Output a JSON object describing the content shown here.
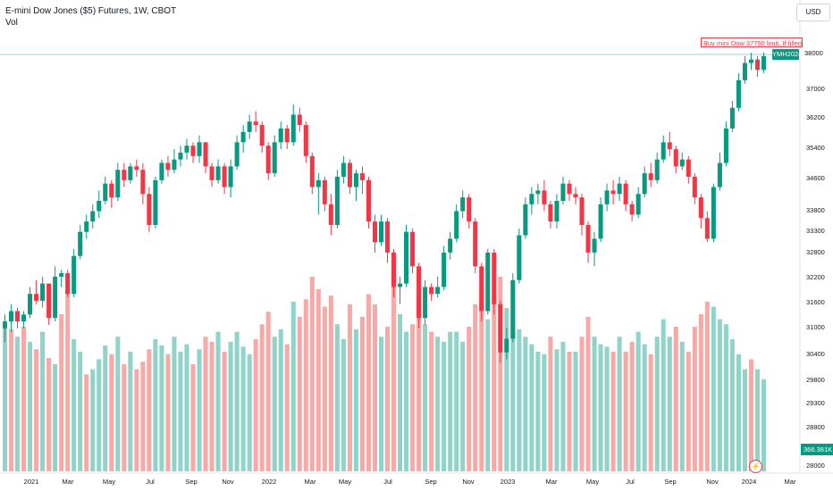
{
  "header": {
    "title": "E-mini Dow Jones ($5) Futures, 1W, CBOT",
    "vol_label": "Vol",
    "currency_button": "USD"
  },
  "order_line": {
    "label": "Buy mini Dow 37750 limit. If filled, sto",
    "price": 38000,
    "color": "#f23645"
  },
  "symbol_tag": "YMH2024",
  "last_price_label": "38000",
  "volume_tag": "366.381K",
  "lightning_icon": "lightning-icon",
  "colors": {
    "up": "#089981",
    "down": "#f23645",
    "vol_up": "#8fd3c9",
    "vol_down": "#f7a9a7",
    "axis_text": "#131722",
    "order_line": "#9ed6cc"
  },
  "chart_data": {
    "type": "candlestick",
    "title": "E-mini Dow Jones ($5) Futures, 1W, CBOT",
    "y_axis_ticks": [
      38000,
      37000,
      36200,
      35400,
      34600,
      33800,
      33300,
      32800,
      32200,
      31600,
      31000,
      30400,
      29800,
      29300,
      28800,
      28400,
      28000
    ],
    "x_axis_ticks": [
      "2021",
      "Mar",
      "May",
      "Jul",
      "Sep",
      "Nov",
      "2022",
      "Mar",
      "May",
      "Jul",
      "Sep",
      "Nov",
      "2023",
      "Mar",
      "May",
      "Jul",
      "Sep",
      "Nov",
      "2024",
      "Mar"
    ],
    "candles": [
      [
        30000,
        30400,
        29600,
        30200
      ],
      [
        30200,
        30700,
        29900,
        30500
      ],
      [
        30500,
        30600,
        30000,
        30200
      ],
      [
        30200,
        30500,
        30000,
        30400
      ],
      [
        30400,
        31200,
        30300,
        31000
      ],
      [
        31000,
        31400,
        30700,
        30800
      ],
      [
        30800,
        31500,
        30600,
        31300
      ],
      [
        31300,
        31300,
        30100,
        30300
      ],
      [
        30300,
        31800,
        30200,
        31500
      ],
      [
        31500,
        31700,
        31200,
        31600
      ],
      [
        31600,
        31700,
        30900,
        31000
      ],
      [
        31000,
        32300,
        30900,
        32100
      ],
      [
        32100,
        33000,
        32000,
        32800
      ],
      [
        32800,
        33300,
        32600,
        33100
      ],
      [
        33100,
        33600,
        32900,
        33400
      ],
      [
        33400,
        34000,
        33200,
        33700
      ],
      [
        33700,
        34400,
        33600,
        34200
      ],
      [
        34200,
        34300,
        33500,
        33800
      ],
      [
        33800,
        34800,
        33700,
        34600
      ],
      [
        34600,
        34800,
        34100,
        34300
      ],
      [
        34300,
        34800,
        34200,
        34700
      ],
      [
        34700,
        34900,
        34400,
        34600
      ],
      [
        34600,
        34800,
        33600,
        33900
      ],
      [
        33900,
        34100,
        32800,
        33000
      ],
      [
        33000,
        34400,
        32900,
        34300
      ],
      [
        34300,
        34900,
        34200,
        34800
      ],
      [
        34800,
        35000,
        34400,
        34600
      ],
      [
        34600,
        35200,
        34500,
        34900
      ],
      [
        34900,
        35300,
        34700,
        35100
      ],
      [
        35100,
        35500,
        34900,
        35300
      ],
      [
        35300,
        35400,
        34800,
        35000
      ],
      [
        35000,
        35600,
        34800,
        35400
      ],
      [
        35400,
        35400,
        34500,
        34700
      ],
      [
        34700,
        34800,
        34100,
        34300
      ],
      [
        34300,
        34900,
        34200,
        34700
      ],
      [
        34700,
        34800,
        33900,
        34100
      ],
      [
        34100,
        34900,
        33800,
        34700
      ],
      [
        34700,
        35600,
        34600,
        35400
      ],
      [
        35400,
        35900,
        35100,
        35700
      ],
      [
        35700,
        36200,
        35500,
        36000
      ],
      [
        36000,
        36300,
        35700,
        35900
      ],
      [
        35900,
        36000,
        35100,
        35300
      ],
      [
        35300,
        35400,
        34300,
        34500
      ],
      [
        34500,
        35600,
        34400,
        35400
      ],
      [
        35400,
        36000,
        35200,
        35800
      ],
      [
        35800,
        35900,
        35200,
        35400
      ],
      [
        35400,
        36500,
        35300,
        36200
      ],
      [
        36200,
        36400,
        35700,
        35900
      ],
      [
        35900,
        36000,
        34800,
        35000
      ],
      [
        35000,
        35100,
        33900,
        34100
      ],
      [
        34100,
        34500,
        33300,
        34300
      ],
      [
        34300,
        34400,
        33400,
        33600
      ],
      [
        33600,
        33900,
        32700,
        33000
      ],
      [
        33000,
        34600,
        32900,
        34400
      ],
      [
        34400,
        35000,
        34200,
        34800
      ],
      [
        34800,
        34900,
        33900,
        34100
      ],
      [
        34100,
        34600,
        33700,
        34500
      ],
      [
        34500,
        34700,
        33900,
        34300
      ],
      [
        34300,
        34400,
        32900,
        33100
      ],
      [
        33100,
        33300,
        32200,
        32500
      ],
      [
        32500,
        33300,
        32400,
        33100
      ],
      [
        33100,
        33200,
        31900,
        32200
      ],
      [
        32200,
        32300,
        30900,
        31200
      ],
      [
        31200,
        31500,
        30700,
        31300
      ],
      [
        31300,
        33000,
        31200,
        32800
      ],
      [
        32800,
        32900,
        31600,
        31800
      ],
      [
        31800,
        31900,
        30000,
        30300
      ],
      [
        30300,
        31400,
        30100,
        31200
      ],
      [
        31200,
        31300,
        30800,
        31000
      ],
      [
        31000,
        31500,
        30900,
        31200
      ],
      [
        31200,
        32400,
        31100,
        32200
      ],
      [
        32200,
        32800,
        32000,
        32600
      ],
      [
        32600,
        33600,
        32500,
        33400
      ],
      [
        33400,
        34000,
        33200,
        33800
      ],
      [
        33800,
        33900,
        32900,
        33100
      ],
      [
        33100,
        33200,
        31600,
        31800
      ],
      [
        31800,
        31900,
        30200,
        30500
      ],
      [
        30500,
        32300,
        30400,
        32200
      ],
      [
        32200,
        32300,
        30400,
        30700
      ],
      [
        30700,
        30800,
        29000,
        29300
      ],
      [
        29300,
        30000,
        29100,
        29700
      ],
      [
        29700,
        31600,
        29600,
        31400
      ],
      [
        31400,
        32900,
        31300,
        32700
      ],
      [
        32700,
        33800,
        32600,
        33600
      ],
      [
        33600,
        34100,
        33300,
        33900
      ],
      [
        33900,
        34200,
        33600,
        34000
      ],
      [
        34000,
        34300,
        33400,
        33600
      ],
      [
        33600,
        33700,
        32900,
        33100
      ],
      [
        33100,
        33900,
        32900,
        33700
      ],
      [
        33700,
        34400,
        33600,
        34200
      ],
      [
        34200,
        34300,
        33700,
        33900
      ],
      [
        33900,
        34100,
        33600,
        33800
      ],
      [
        33800,
        33900,
        32700,
        33000
      ],
      [
        33000,
        33100,
        31900,
        32200
      ],
      [
        32200,
        32800,
        31800,
        32600
      ],
      [
        32600,
        33800,
        32500,
        33600
      ],
      [
        33600,
        34200,
        33400,
        34000
      ],
      [
        34000,
        34300,
        33600,
        33900
      ],
      [
        33900,
        34400,
        33700,
        34200
      ],
      [
        34200,
        34300,
        33400,
        33600
      ],
      [
        33600,
        33700,
        33100,
        33300
      ],
      [
        33300,
        34100,
        33200,
        33900
      ],
      [
        33900,
        34700,
        33800,
        34500
      ],
      [
        34500,
        34800,
        34100,
        34300
      ],
      [
        34300,
        35100,
        34200,
        34900
      ],
      [
        34900,
        35600,
        34800,
        35400
      ],
      [
        35400,
        35700,
        35000,
        35200
      ],
      [
        35200,
        35300,
        34500,
        34700
      ],
      [
        34700,
        35100,
        34600,
        34900
      ],
      [
        34900,
        35000,
        34200,
        34400
      ],
      [
        34400,
        34500,
        33600,
        33800
      ],
      [
        33800,
        33900,
        32900,
        33200
      ],
      [
        33200,
        33400,
        32500,
        32600
      ],
      [
        32600,
        34200,
        32500,
        34100
      ],
      [
        34100,
        35100,
        34000,
        34800
      ],
      [
        34800,
        36000,
        34700,
        35800
      ],
      [
        35800,
        36600,
        35700,
        36400
      ],
      [
        36400,
        37400,
        36300,
        37200
      ],
      [
        37200,
        37900,
        37100,
        37700
      ],
      [
        37700,
        38000,
        37500,
        37800
      ],
      [
        37800,
        37900,
        37300,
        37500
      ],
      [
        37500,
        38000,
        37400,
        37900
      ]
    ],
    "volume": [
      [
        272,
        "up"
      ],
      [
        268,
        "down"
      ],
      [
        262,
        "up"
      ],
      [
        270,
        "down"
      ],
      [
        258,
        "up"
      ],
      [
        252,
        "down"
      ],
      [
        266,
        "up"
      ],
      [
        245,
        "down"
      ],
      [
        240,
        "up"
      ],
      [
        280,
        "down"
      ],
      [
        300,
        "down"
      ],
      [
        260,
        "up"
      ],
      [
        250,
        "up"
      ],
      [
        232,
        "down"
      ],
      [
        236,
        "up"
      ],
      [
        244,
        "up"
      ],
      [
        255,
        "up"
      ],
      [
        248,
        "down"
      ],
      [
        262,
        "up"
      ],
      [
        240,
        "down"
      ],
      [
        250,
        "up"
      ],
      [
        236,
        "down"
      ],
      [
        242,
        "down"
      ],
      [
        252,
        "down"
      ],
      [
        260,
        "up"
      ],
      [
        255,
        "up"
      ],
      [
        248,
        "down"
      ],
      [
        262,
        "up"
      ],
      [
        250,
        "up"
      ],
      [
        256,
        "up"
      ],
      [
        240,
        "down"
      ],
      [
        252,
        "up"
      ],
      [
        262,
        "down"
      ],
      [
        258,
        "down"
      ],
      [
        266,
        "up"
      ],
      [
        250,
        "down"
      ],
      [
        258,
        "up"
      ],
      [
        266,
        "up"
      ],
      [
        254,
        "up"
      ],
      [
        248,
        "up"
      ],
      [
        260,
        "down"
      ],
      [
        272,
        "down"
      ],
      [
        282,
        "down"
      ],
      [
        262,
        "up"
      ],
      [
        268,
        "up"
      ],
      [
        256,
        "down"
      ],
      [
        290,
        "up"
      ],
      [
        278,
        "down"
      ],
      [
        292,
        "down"
      ],
      [
        310,
        "down"
      ],
      [
        300,
        "down"
      ],
      [
        286,
        "down"
      ],
      [
        295,
        "down"
      ],
      [
        272,
        "up"
      ],
      [
        260,
        "up"
      ],
      [
        288,
        "down"
      ],
      [
        268,
        "up"
      ],
      [
        278,
        "down"
      ],
      [
        296,
        "down"
      ],
      [
        288,
        "down"
      ],
      [
        262,
        "up"
      ],
      [
        270,
        "down"
      ],
      [
        310,
        "down"
      ],
      [
        280,
        "up"
      ],
      [
        266,
        "up"
      ],
      [
        272,
        "down"
      ],
      [
        296,
        "down"
      ],
      [
        272,
        "up"
      ],
      [
        266,
        "down"
      ],
      [
        262,
        "up"
      ],
      [
        258,
        "up"
      ],
      [
        266,
        "up"
      ],
      [
        266,
        "up"
      ],
      [
        258,
        "up"
      ],
      [
        270,
        "down"
      ],
      [
        288,
        "down"
      ],
      [
        300,
        "down"
      ],
      [
        276,
        "up"
      ],
      [
        295,
        "down"
      ],
      [
        310,
        "down"
      ],
      [
        285,
        "up"
      ],
      [
        280,
        "up"
      ],
      [
        268,
        "up"
      ],
      [
        262,
        "up"
      ],
      [
        256,
        "up"
      ],
      [
        250,
        "up"
      ],
      [
        248,
        "up"
      ],
      [
        262,
        "down"
      ],
      [
        252,
        "up"
      ],
      [
        258,
        "up"
      ],
      [
        250,
        "down"
      ],
      [
        250,
        "up"
      ],
      [
        262,
        "down"
      ],
      [
        278,
        "down"
      ],
      [
        262,
        "up"
      ],
      [
        256,
        "up"
      ],
      [
        254,
        "up"
      ],
      [
        250,
        "down"
      ],
      [
        262,
        "up"
      ],
      [
        250,
        "down"
      ],
      [
        258,
        "down"
      ],
      [
        266,
        "up"
      ],
      [
        256,
        "up"
      ],
      [
        248,
        "down"
      ],
      [
        262,
        "up"
      ],
      [
        276,
        "up"
      ],
      [
        262,
        "up"
      ],
      [
        270,
        "down"
      ],
      [
        258,
        "up"
      ],
      [
        250,
        "down"
      ],
      [
        270,
        "down"
      ],
      [
        280,
        "down"
      ],
      [
        290,
        "down"
      ],
      [
        286,
        "up"
      ],
      [
        276,
        "up"
      ],
      [
        272,
        "up"
      ],
      [
        260,
        "up"
      ],
      [
        248,
        "up"
      ],
      [
        236,
        "up"
      ],
      [
        244,
        "down"
      ],
      [
        236,
        "up"
      ],
      [
        228,
        "up"
      ]
    ]
  }
}
